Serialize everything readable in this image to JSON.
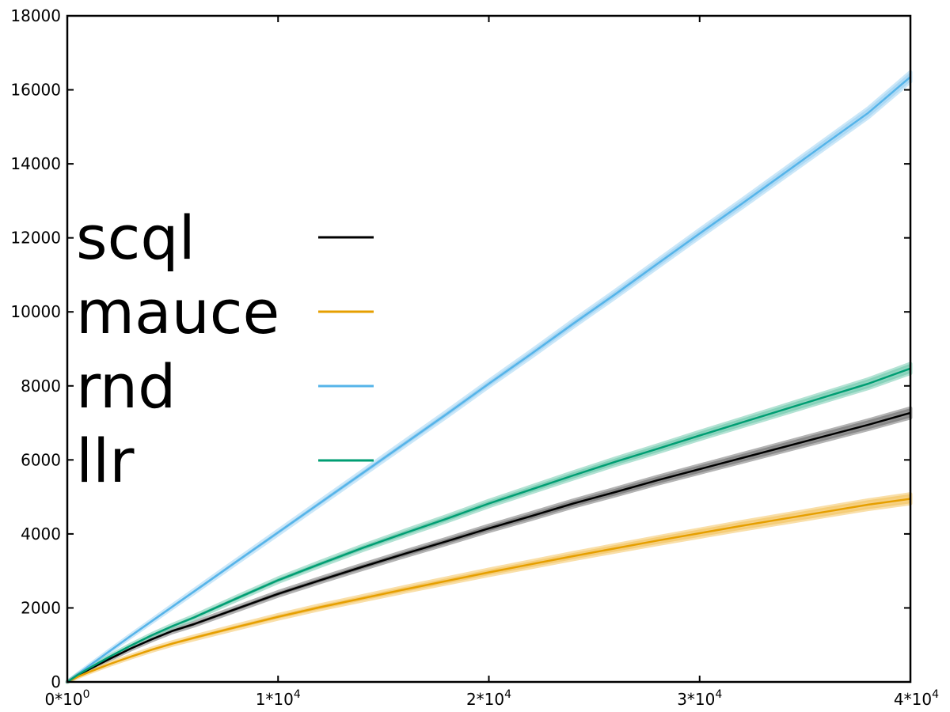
{
  "chart_data": {
    "type": "line",
    "title": "",
    "xlabel": "",
    "ylabel": "",
    "xlim": [
      0,
      40000
    ],
    "ylim": [
      0,
      18000
    ],
    "grid": false,
    "legend_position": "left",
    "x_ticks": [
      {
        "value": 0,
        "mantissa": "0*10",
        "exp": "0"
      },
      {
        "value": 10000,
        "mantissa": "1*10",
        "exp": "4"
      },
      {
        "value": 20000,
        "mantissa": "2*10",
        "exp": "4"
      },
      {
        "value": 30000,
        "mantissa": "3*10",
        "exp": "4"
      },
      {
        "value": 40000,
        "mantissa": "4*10",
        "exp": "4"
      }
    ],
    "y_ticks": [
      0,
      2000,
      4000,
      6000,
      8000,
      10000,
      12000,
      14000,
      16000,
      18000
    ],
    "x": [
      0,
      500,
      1000,
      2000,
      3000,
      4000,
      5000,
      6000,
      8000,
      10000,
      12000,
      14000,
      16000,
      18000,
      20000,
      22000,
      24000,
      26000,
      28000,
      30000,
      32000,
      34000,
      36000,
      38000,
      40000
    ],
    "series": [
      {
        "name": "scql",
        "color": "#000000",
        "band_color": "#808080",
        "values": [
          0,
          180,
          330,
          620,
          900,
          1150,
          1380,
          1560,
          1970,
          2380,
          2750,
          3110,
          3460,
          3800,
          4150,
          4480,
          4820,
          5130,
          5450,
          5750,
          6050,
          6350,
          6650,
          6950,
          7270
        ],
        "band": [
          0,
          10,
          15,
          20,
          25,
          30,
          35,
          40,
          45,
          50,
          55,
          60,
          65,
          70,
          75,
          80,
          85,
          90,
          95,
          100,
          105,
          110,
          115,
          120,
          125
        ]
      },
      {
        "name": "mauce",
        "color": "#e69f00",
        "band_color": "#f5c970",
        "values": [
          0,
          140,
          260,
          480,
          680,
          870,
          1040,
          1190,
          1480,
          1760,
          2020,
          2260,
          2500,
          2730,
          2960,
          3180,
          3400,
          3610,
          3820,
          4020,
          4220,
          4410,
          4600,
          4790,
          4950
        ],
        "band": [
          0,
          10,
          15,
          20,
          25,
          30,
          35,
          40,
          45,
          50,
          55,
          60,
          65,
          70,
          75,
          80,
          85,
          90,
          95,
          100,
          105,
          110,
          115,
          120,
          125
        ]
      },
      {
        "name": "rnd",
        "color": "#56b4e9",
        "band_color": "#a8d7f4",
        "values": [
          0,
          210,
          420,
          830,
          1240,
          1640,
          2040,
          2440,
          3240,
          4040,
          4840,
          5640,
          6440,
          7240,
          8060,
          8860,
          9680,
          10480,
          11300,
          12120,
          12920,
          13740,
          14560,
          15380,
          16350
        ],
        "band": [
          0,
          10,
          15,
          20,
          25,
          30,
          35,
          40,
          45,
          50,
          55,
          60,
          65,
          70,
          75,
          80,
          85,
          90,
          95,
          100,
          105,
          110,
          115,
          120,
          125
        ]
      },
      {
        "name": "llr",
        "color": "#009e73",
        "band_color": "#7fcfb6",
        "values": [
          0,
          190,
          360,
          680,
          980,
          1260,
          1510,
          1740,
          2250,
          2750,
          3190,
          3620,
          4020,
          4410,
          4820,
          5200,
          5580,
          5950,
          6300,
          6660,
          7010,
          7360,
          7710,
          8060,
          8470
        ],
        "band": [
          0,
          10,
          15,
          20,
          25,
          30,
          35,
          40,
          45,
          50,
          55,
          60,
          65,
          70,
          75,
          80,
          85,
          90,
          95,
          100,
          105,
          110,
          115,
          120,
          125
        ]
      }
    ]
  }
}
